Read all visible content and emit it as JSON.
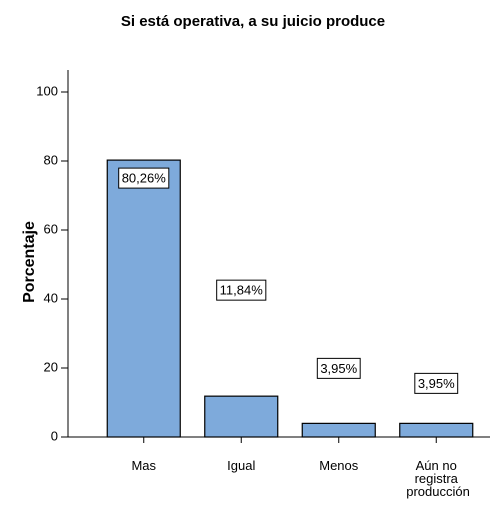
{
  "chart_data": {
    "type": "bar",
    "title": "Si está operativa, a su juicio produce",
    "ylabel": "Porcentaje",
    "categories": [
      "Mas",
      "Igual",
      "Menos",
      "Aún no registra producción"
    ],
    "values": [
      80.26,
      11.84,
      3.95,
      3.95
    ],
    "value_labels": [
      "80,26%",
      "11,84%",
      "3,95%",
      "3,95%"
    ],
    "color": "#7eaadb",
    "ylim": [
      0,
      100
    ],
    "yticks": [
      0,
      20,
      40,
      60,
      80,
      100
    ]
  }
}
